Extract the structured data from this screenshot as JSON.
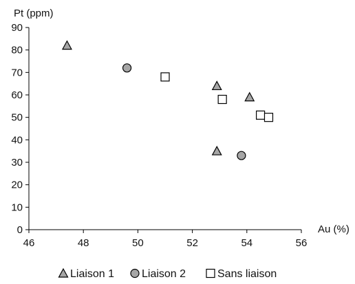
{
  "chart_data": {
    "type": "scatter",
    "title": "",
    "xlabel": "Au (%)",
    "ylabel": "Pt (ppm)",
    "xlim": [
      46,
      56
    ],
    "ylim": [
      0,
      90
    ],
    "xticks": [
      46,
      48,
      50,
      52,
      54,
      56
    ],
    "yticks": [
      0,
      10,
      20,
      30,
      40,
      50,
      60,
      70,
      80,
      90
    ],
    "grid": false,
    "legend_position": "bottom",
    "series": [
      {
        "name": "Liaison 1",
        "marker": "triangle",
        "color": "#a6a6a6",
        "points": [
          [
            47.4,
            82
          ],
          [
            52.9,
            64
          ],
          [
            54.1,
            59
          ],
          [
            52.9,
            35
          ]
        ]
      },
      {
        "name": "Liaison 2",
        "marker": "circle",
        "color": "#a6a6a6",
        "points": [
          [
            49.6,
            72
          ],
          [
            53.8,
            33
          ]
        ]
      },
      {
        "name": "Sans liaison",
        "marker": "square",
        "color": "#ffffff",
        "points": [
          [
            51.0,
            68
          ],
          [
            53.1,
            58
          ],
          [
            54.5,
            51
          ],
          [
            54.8,
            50
          ]
        ]
      }
    ]
  }
}
